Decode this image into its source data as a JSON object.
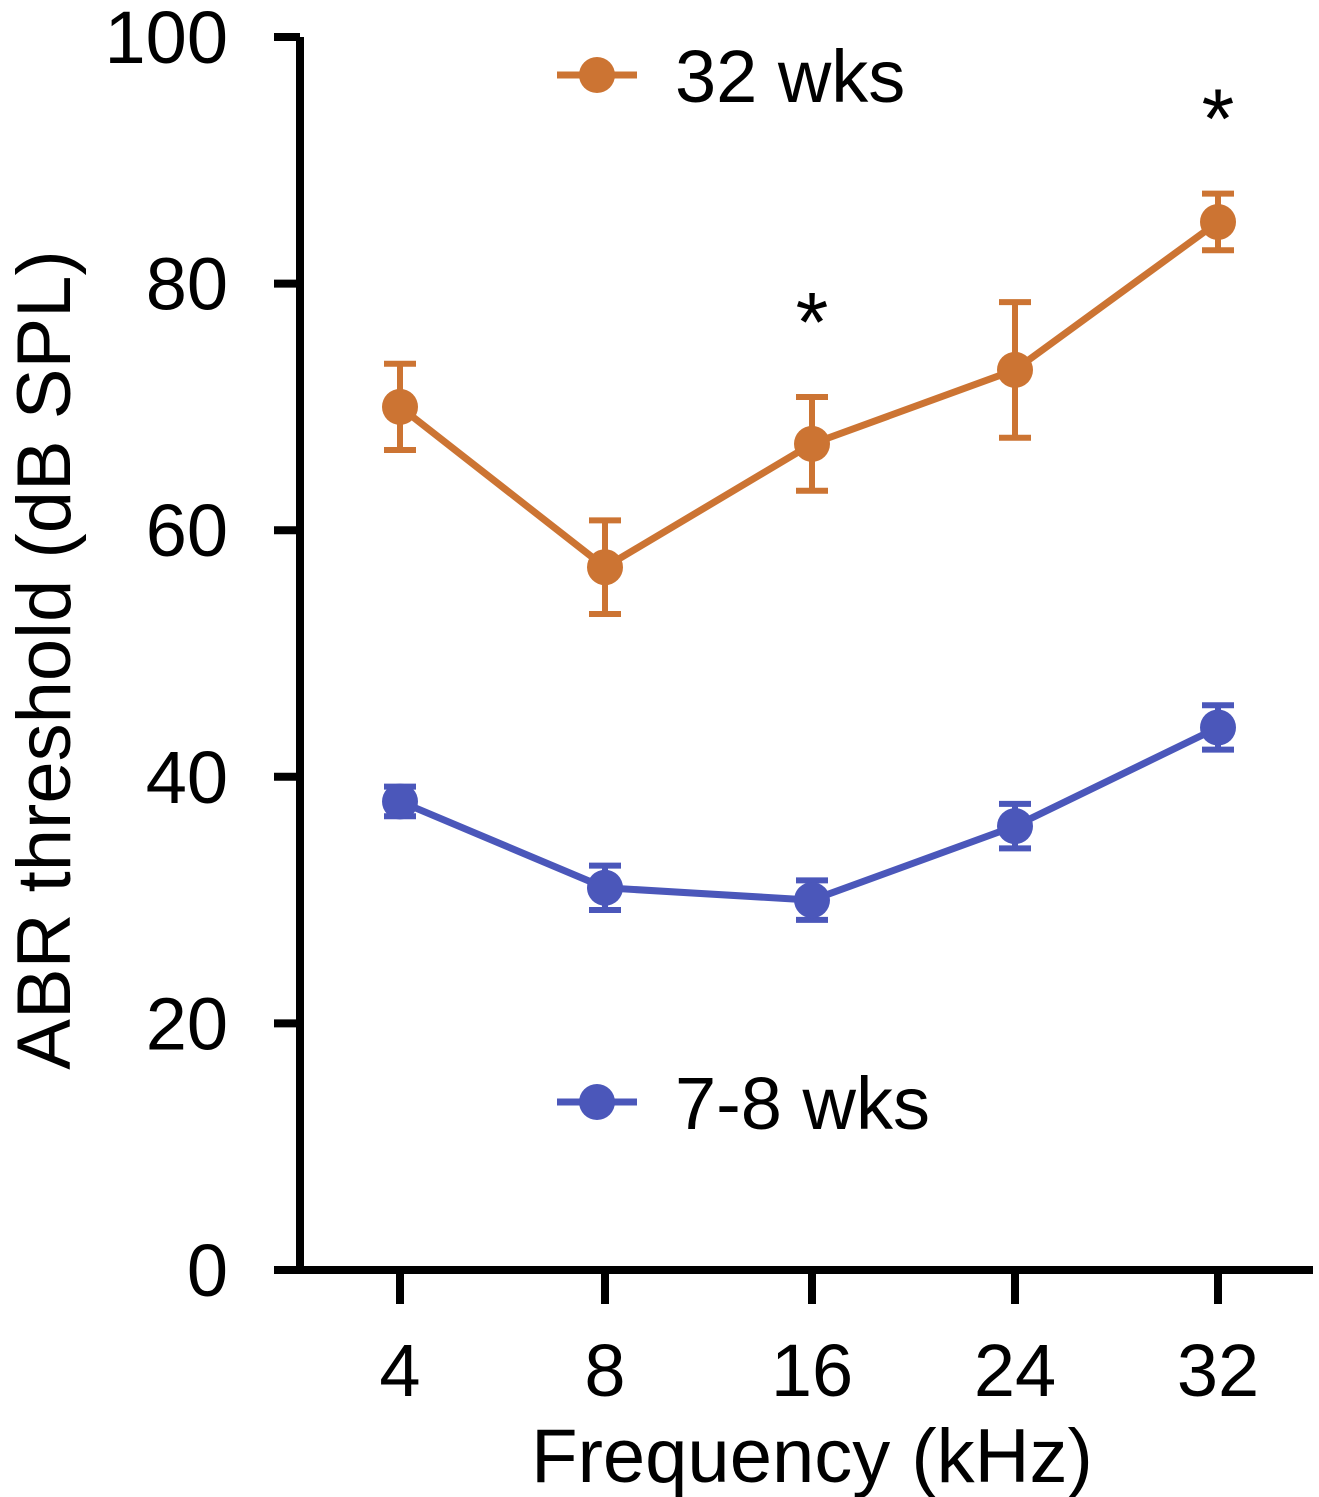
{
  "chart_data": {
    "type": "line",
    "title": "",
    "xlabel": "Frequency (kHz)",
    "ylabel": "ABR threshold (dB SPL)",
    "categories": [
      "4",
      "8",
      "16",
      "24",
      "32"
    ],
    "ylim": [
      0,
      100
    ],
    "yticks": [
      "0",
      "20",
      "40",
      "60",
      "80",
      "100"
    ],
    "grid": false,
    "series": [
      {
        "name": "32 wks",
        "color": "#CC7433",
        "values": [
          70,
          57,
          67,
          73,
          85
        ],
        "errors": [
          3.5,
          3.8,
          3.8,
          5.5,
          2.3
        ],
        "significance": [
          "",
          "",
          "*",
          "",
          "*"
        ]
      },
      {
        "name": "7-8 wks",
        "color": "#4B57BA",
        "values": [
          38,
          31,
          30,
          36,
          44
        ],
        "errors": [
          1.2,
          1.8,
          1.6,
          1.8,
          1.8
        ],
        "significance": [
          "",
          "",
          "",
          "",
          ""
        ]
      }
    ]
  }
}
